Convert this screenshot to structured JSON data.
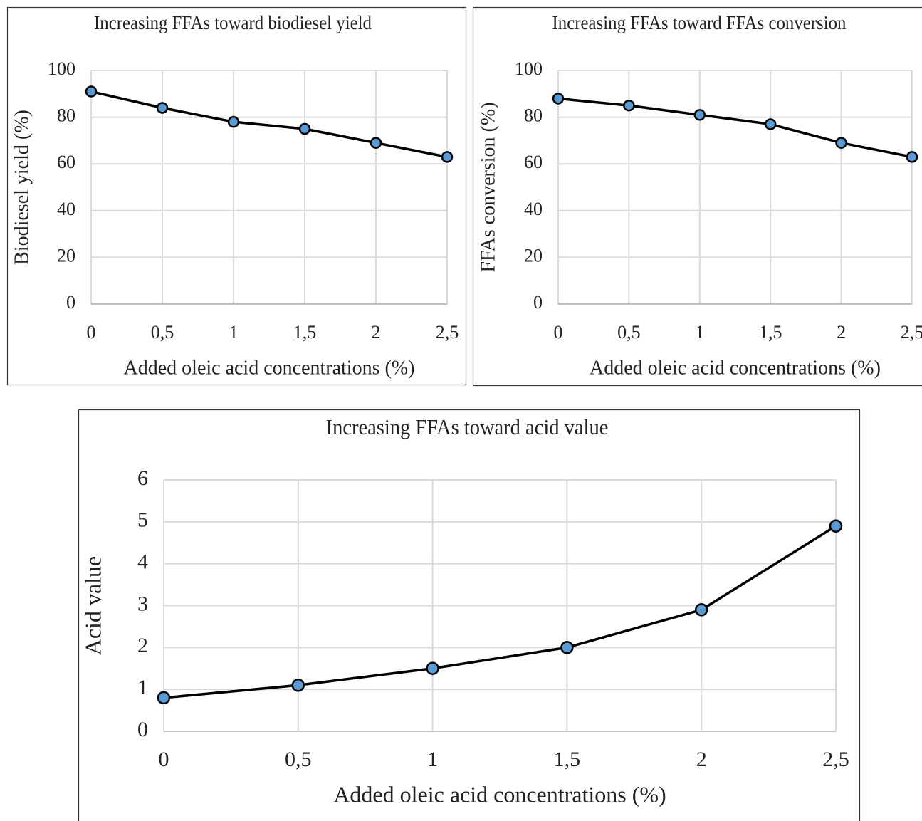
{
  "chart_data": [
    {
      "type": "line",
      "title": "Increasing  FFAs toward biodiesel yield",
      "x_label": "Added  oleic acid concentrations (%)",
      "y_label": "Biodiesel yield (%)",
      "categories": [
        "0",
        "0,5",
        "1",
        "1,5",
        "2",
        "2,5"
      ],
      "values": [
        91,
        84,
        78,
        75,
        69,
        63
      ],
      "color": "#5b9bd5",
      "ylim": [
        0,
        100
      ],
      "yticks": [
        0,
        20,
        40,
        60,
        80,
        100
      ],
      "grid": true
    },
    {
      "type": "line",
      "title": "Increasing  FFAs toward FFAs conversion",
      "x_label": "Added  oleic acid concentrations (%)",
      "y_label": "FFAs conversion (%)",
      "categories": [
        "0",
        "0,5",
        "1",
        "1,5",
        "2",
        "2,5"
      ],
      "values": [
        88,
        85,
        81,
        77,
        69,
        63
      ],
      "color": "#5b9bd5",
      "ylim": [
        0,
        100
      ],
      "yticks": [
        0,
        20,
        40,
        60,
        80,
        100
      ],
      "grid": true
    },
    {
      "type": "line",
      "title": "Increasing  FFAs toward acid value",
      "x_label": "Added  oleic acid concentrations (%)",
      "y_label": "Acid value",
      "categories": [
        "0",
        "0,5",
        "1",
        "1,5",
        "2",
        "2,5"
      ],
      "values": [
        0.8,
        1.1,
        1.5,
        2,
        2.9,
        4.9
      ],
      "color": "#5b9bd5",
      "ylim": [
        0,
        6
      ],
      "yticks": [
        0,
        1,
        2,
        3,
        4,
        5,
        6
      ],
      "grid": true
    }
  ]
}
